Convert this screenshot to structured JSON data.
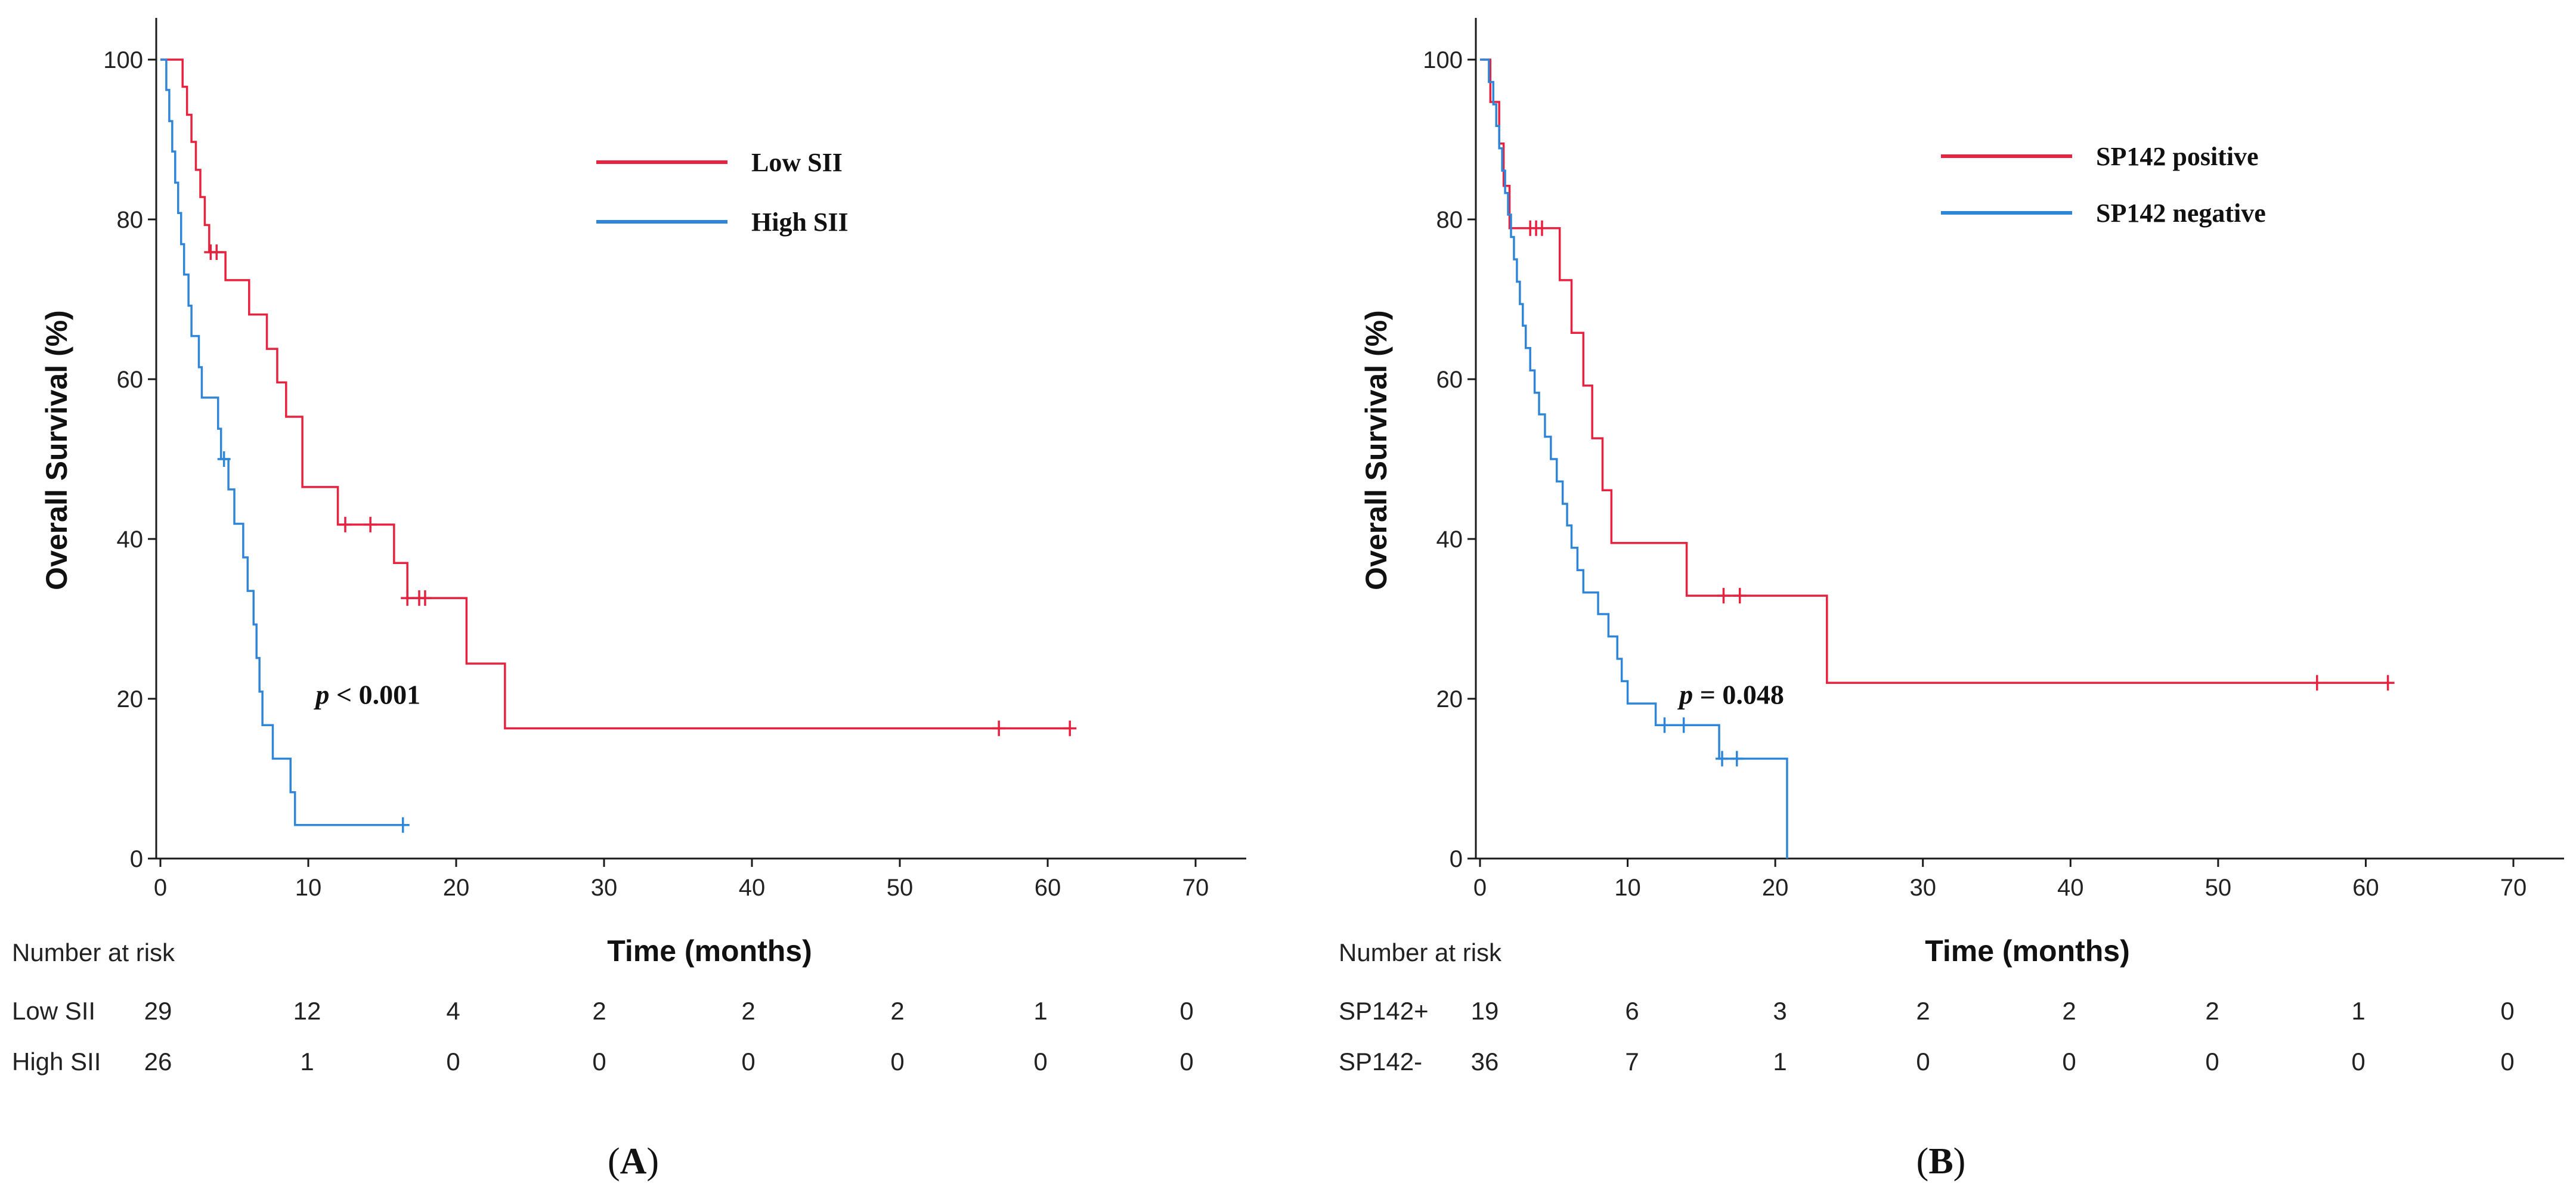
{
  "chart_data": [
    {
      "type": "line",
      "panel_label": "A",
      "xlabel": "Time (months)",
      "ylabel": "Overall Survival (%)",
      "xlim": [
        0,
        72
      ],
      "ylim": [
        0,
        105
      ],
      "xticks": [
        0,
        10,
        20,
        30,
        40,
        50,
        60,
        70
      ],
      "yticks": [
        0,
        20,
        40,
        60,
        80,
        100
      ],
      "p_value_prefix": "p",
      "p_value_text": " < 0.001",
      "p_value_pos": [
        10.5,
        20.5
      ],
      "legend": {
        "location": "top-right"
      },
      "series": [
        {
          "name": "Low SII",
          "color": "#e8213f",
          "steps": [
            [
              0,
              100
            ],
            [
              1.5,
              96.6
            ],
            [
              1.8,
              93.1
            ],
            [
              2.1,
              89.7
            ],
            [
              2.4,
              86.2
            ],
            [
              2.7,
              82.8
            ],
            [
              3.0,
              79.3
            ],
            [
              3.3,
              75.9
            ],
            [
              4.4,
              72.4
            ],
            [
              6.0,
              68.1
            ],
            [
              7.2,
              63.8
            ],
            [
              7.9,
              59.6
            ],
            [
              8.5,
              55.3
            ],
            [
              9.6,
              46.5
            ],
            [
              12.0,
              41.8
            ],
            [
              15.8,
              37.0
            ],
            [
              16.7,
              32.6
            ],
            [
              20.7,
              24.4
            ],
            [
              23.3,
              16.3
            ]
          ],
          "end": 61.5,
          "censored": [
            [
              3.4,
              75.9
            ],
            [
              3.8,
              75.9
            ],
            [
              12.5,
              41.8
            ],
            [
              14.2,
              41.8
            ],
            [
              16.7,
              32.6
            ],
            [
              17.5,
              32.6
            ],
            [
              17.9,
              32.6
            ],
            [
              56.7,
              16.3
            ],
            [
              61.5,
              16.3
            ]
          ]
        },
        {
          "name": "High SII",
          "color": "#2f86d8",
          "steps": [
            [
              0,
              100
            ],
            [
              0.4,
              96.2
            ],
            [
              0.6,
              92.3
            ],
            [
              0.8,
              88.5
            ],
            [
              1.0,
              84.6
            ],
            [
              1.2,
              80.8
            ],
            [
              1.4,
              76.9
            ],
            [
              1.6,
              73.1
            ],
            [
              1.9,
              69.2
            ],
            [
              2.1,
              65.4
            ],
            [
              2.6,
              61.5
            ],
            [
              2.8,
              57.7
            ],
            [
              3.9,
              53.8
            ],
            [
              4.1,
              50.0
            ],
            [
              4.6,
              46.2
            ],
            [
              5.0,
              41.9
            ],
            [
              5.6,
              37.7
            ],
            [
              5.9,
              33.5
            ],
            [
              6.3,
              29.3
            ],
            [
              6.5,
              25.1
            ],
            [
              6.7,
              20.9
            ],
            [
              6.9,
              16.7
            ],
            [
              7.6,
              12.5
            ],
            [
              8.8,
              8.3
            ],
            [
              9.1,
              4.2
            ]
          ],
          "end": 16.4,
          "censored": [
            [
              4.3,
              50.0
            ],
            [
              16.4,
              4.2
            ]
          ]
        }
      ],
      "risk_table": {
        "title": "Number at risk",
        "rows": [
          {
            "label": "Low SII",
            "values": [
              29,
              12,
              4,
              2,
              2,
              2,
              1,
              0
            ]
          },
          {
            "label": "High SII",
            "values": [
              26,
              1,
              0,
              0,
              0,
              0,
              0,
              0
            ]
          }
        ]
      }
    },
    {
      "type": "line",
      "panel_label": "B",
      "xlabel": "Time (months)",
      "ylabel": "Overall Survival (%)",
      "xlim": [
        0,
        72
      ],
      "ylim": [
        0,
        105
      ],
      "xticks": [
        0,
        10,
        20,
        30,
        40,
        50,
        60,
        70
      ],
      "yticks": [
        0,
        20,
        40,
        60,
        80,
        100
      ],
      "p_value_prefix": "p",
      "p_value_text": " = 0.048",
      "p_value_pos": [
        13.5,
        20.5
      ],
      "legend": {
        "location": "top-right"
      },
      "series": [
        {
          "name": "SP142 positive",
          "color": "#e8213f",
          "steps": [
            [
              0,
              100
            ],
            [
              0.7,
              94.7
            ],
            [
              1.3,
              89.5
            ],
            [
              1.6,
              84.2
            ],
            [
              2.0,
              78.9
            ],
            [
              5.4,
              72.4
            ],
            [
              6.2,
              65.8
            ],
            [
              7.0,
              59.2
            ],
            [
              7.6,
              52.6
            ],
            [
              8.3,
              46.1
            ],
            [
              8.9,
              39.5
            ],
            [
              14.0,
              32.9
            ],
            [
              23.5,
              22.0
            ]
          ],
          "end": 61.5,
          "censored": [
            [
              3.4,
              78.9
            ],
            [
              3.8,
              78.9
            ],
            [
              4.2,
              78.9
            ],
            [
              16.5,
              32.9
            ],
            [
              17.6,
              32.9
            ],
            [
              56.7,
              22.0
            ],
            [
              61.5,
              22.0
            ]
          ]
        },
        {
          "name": "SP142 negative",
          "color": "#2f86d8",
          "steps": [
            [
              0,
              100
            ],
            [
              0.6,
              97.2
            ],
            [
              0.9,
              94.4
            ],
            [
              1.1,
              91.7
            ],
            [
              1.3,
              88.9
            ],
            [
              1.5,
              86.1
            ],
            [
              1.7,
              83.3
            ],
            [
              1.9,
              80.6
            ],
            [
              2.1,
              77.8
            ],
            [
              2.3,
              75.0
            ],
            [
              2.5,
              72.2
            ],
            [
              2.7,
              69.4
            ],
            [
              2.9,
              66.7
            ],
            [
              3.1,
              63.9
            ],
            [
              3.4,
              61.1
            ],
            [
              3.7,
              58.3
            ],
            [
              4.0,
              55.6
            ],
            [
              4.4,
              52.8
            ],
            [
              4.8,
              50.0
            ],
            [
              5.2,
              47.2
            ],
            [
              5.6,
              44.4
            ],
            [
              5.9,
              41.7
            ],
            [
              6.2,
              38.9
            ],
            [
              6.6,
              36.1
            ],
            [
              7.0,
              33.3
            ],
            [
              8.0,
              30.6
            ],
            [
              8.7,
              27.8
            ],
            [
              9.3,
              25.0
            ],
            [
              9.6,
              22.2
            ],
            [
              10.0,
              19.4
            ],
            [
              11.9,
              16.7
            ],
            [
              16.2,
              12.5
            ],
            [
              20.8,
              0
            ]
          ],
          "end": 20.8,
          "censored": [
            [
              12.5,
              16.7
            ],
            [
              13.8,
              16.7
            ],
            [
              16.4,
              12.5
            ],
            [
              17.4,
              12.5
            ]
          ]
        }
      ],
      "risk_table": {
        "title": "Number at risk",
        "rows": [
          {
            "label": "SP142+",
            "values": [
              19,
              6,
              3,
              2,
              2,
              2,
              1,
              0
            ]
          },
          {
            "label": "SP142-",
            "values": [
              36,
              7,
              1,
              0,
              0,
              0,
              0,
              0
            ]
          }
        ]
      }
    }
  ]
}
